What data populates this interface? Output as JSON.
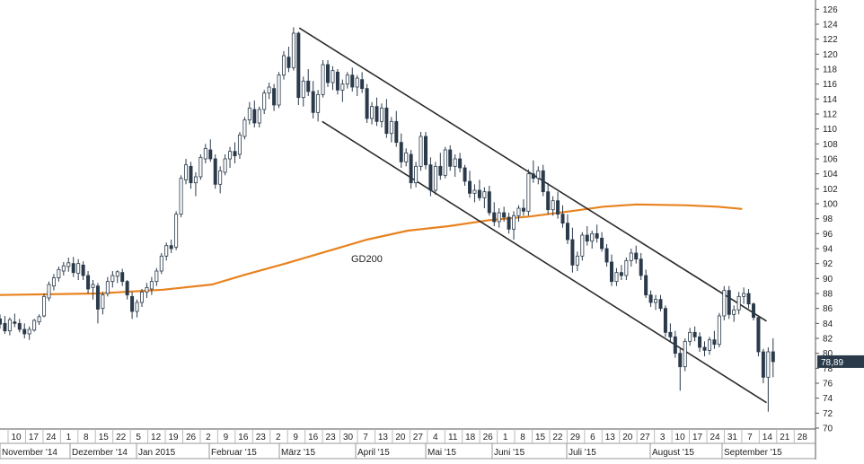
{
  "chart_data": {
    "type": "candlestick",
    "title": "",
    "ylim": [
      70,
      127
    ],
    "yticks": [
      70,
      72,
      74,
      76,
      78,
      80,
      82,
      84,
      86,
      88,
      90,
      92,
      94,
      96,
      98,
      100,
      102,
      104,
      106,
      108,
      110,
      112,
      114,
      116,
      118,
      120,
      122,
      124,
      126
    ],
    "current_price_label": "78,89",
    "current_price": 78.89,
    "grid": false,
    "x_day_ticks": [
      "10",
      "17",
      "24",
      "1",
      "8",
      "15",
      "22",
      "5",
      "12",
      "19",
      "26",
      "2",
      "9",
      "16",
      "23",
      "2",
      "9",
      "16",
      "23",
      "30",
      "7",
      "13",
      "20",
      "27",
      "4",
      "11",
      "18",
      "26",
      "1",
      "8",
      "15",
      "22",
      "29",
      "6",
      "13",
      "20",
      "27",
      "3",
      "10",
      "17",
      "24",
      "31",
      "7",
      "14",
      "21",
      "28"
    ],
    "x_month_labels": [
      "November '14",
      "Dezember '14",
      "Jan 2015",
      "Februar '15",
      "März '15",
      "April '15",
      "Mai '15",
      "Juni '15",
      "Juli '15",
      "August '15",
      "September '15"
    ],
    "annotations": [
      {
        "text": "GD200"
      }
    ],
    "series": [
      {
        "name": "GD200",
        "color": "#e8821e",
        "points": [
          [
            0,
            87.8
          ],
          [
            0.12,
            88.0
          ],
          [
            0.2,
            88.5
          ],
          [
            0.26,
            89.2
          ],
          [
            0.3,
            90.5
          ],
          [
            0.35,
            92.0
          ],
          [
            0.4,
            93.6
          ],
          [
            0.45,
            95.2
          ],
          [
            0.5,
            96.4
          ],
          [
            0.55,
            97.0
          ],
          [
            0.6,
            97.8
          ],
          [
            0.65,
            98.3
          ],
          [
            0.7,
            99.0
          ],
          [
            0.74,
            99.6
          ],
          [
            0.78,
            99.9
          ],
          [
            0.84,
            99.8
          ],
          [
            0.88,
            99.6
          ],
          [
            0.91,
            99.3
          ]
        ]
      }
    ],
    "trend_channel": {
      "upper": [
        [
          0.367,
          123.5
        ],
        [
          0.94,
          84.3
        ]
      ],
      "lower": [
        [
          0.395,
          111.0
        ],
        [
          0.94,
          73.4
        ]
      ],
      "color": "#2b2b2b"
    },
    "candles": [
      [
        0.0,
        84.6,
        85.2,
        83.3,
        83.9
      ],
      [
        0.006,
        84.0,
        85.0,
        82.6,
        83.0
      ],
      [
        0.012,
        83.0,
        84.8,
        82.4,
        84.5
      ],
      [
        0.018,
        84.2,
        85.3,
        83.5,
        84.0
      ],
      [
        0.024,
        84.0,
        84.6,
        82.8,
        83.2
      ],
      [
        0.03,
        83.2,
        84.0,
        82.0,
        82.6
      ],
      [
        0.036,
        82.6,
        83.6,
        81.8,
        83.2
      ],
      [
        0.042,
        83.1,
        84.6,
        82.9,
        84.4
      ],
      [
        0.048,
        84.2,
        85.2,
        83.8,
        84.9
      ],
      [
        0.054,
        85.0,
        88.0,
        84.8,
        87.6
      ],
      [
        0.06,
        87.4,
        89.6,
        87.0,
        89.2
      ],
      [
        0.066,
        89.0,
        90.6,
        88.4,
        90.1
      ],
      [
        0.072,
        90.1,
        91.6,
        89.6,
        91.2
      ],
      [
        0.078,
        91.0,
        92.2,
        90.4,
        91.7
      ],
      [
        0.084,
        91.6,
        92.8,
        90.9,
        92.1
      ],
      [
        0.09,
        92.0,
        92.9,
        90.2,
        90.8
      ],
      [
        0.096,
        90.7,
        92.6,
        89.8,
        92.0
      ],
      [
        0.102,
        91.8,
        92.3,
        89.8,
        90.4
      ],
      [
        0.108,
        90.4,
        91.0,
        88.0,
        88.6
      ],
      [
        0.114,
        88.8,
        89.8,
        87.2,
        89.2
      ],
      [
        0.12,
        89.0,
        89.4,
        84.0,
        85.9
      ],
      [
        0.126,
        86.0,
        88.2,
        85.2,
        87.8
      ],
      [
        0.132,
        88.0,
        90.2,
        87.6,
        89.6
      ],
      [
        0.138,
        89.6,
        91.0,
        88.8,
        90.4
      ],
      [
        0.144,
        90.3,
        91.1,
        89.4,
        90.9
      ],
      [
        0.15,
        90.8,
        91.3,
        89.0,
        89.6
      ],
      [
        0.156,
        89.6,
        89.8,
        87.2,
        87.8
      ],
      [
        0.162,
        87.6,
        88.2,
        84.6,
        85.6
      ],
      [
        0.168,
        85.6,
        87.2,
        84.8,
        86.8
      ],
      [
        0.174,
        86.8,
        88.6,
        86.2,
        88.2
      ],
      [
        0.18,
        88.2,
        89.4,
        87.4,
        88.8
      ],
      [
        0.186,
        88.6,
        90.2,
        87.8,
        89.6
      ],
      [
        0.192,
        89.6,
        91.4,
        89.0,
        91.0
      ],
      [
        0.198,
        91.0,
        93.4,
        90.6,
        93.0
      ],
      [
        0.204,
        93.0,
        94.8,
        92.4,
        94.4
      ],
      [
        0.21,
        94.4,
        95.2,
        93.4,
        94.0
      ],
      [
        0.216,
        94.2,
        99.0,
        93.8,
        98.6
      ],
      [
        0.222,
        98.6,
        103.8,
        98.2,
        103.4
      ],
      [
        0.228,
        103.2,
        106.0,
        102.6,
        105.2
      ],
      [
        0.234,
        105.0,
        105.6,
        102.0,
        102.8
      ],
      [
        0.24,
        102.8,
        104.2,
        101.0,
        103.6
      ],
      [
        0.246,
        103.6,
        106.6,
        103.2,
        106.2
      ],
      [
        0.252,
        106.0,
        108.0,
        105.4,
        107.4
      ],
      [
        0.258,
        107.2,
        108.6,
        105.6,
        106.0
      ],
      [
        0.264,
        106.0,
        106.6,
        102.0,
        102.6
      ],
      [
        0.27,
        102.6,
        105.0,
        101.4,
        104.4
      ],
      [
        0.276,
        104.2,
        106.6,
        103.8,
        106.0
      ],
      [
        0.282,
        106.0,
        107.6,
        104.8,
        107.0
      ],
      [
        0.288,
        107.0,
        108.2,
        105.4,
        106.4
      ],
      [
        0.294,
        106.6,
        109.6,
        106.0,
        109.2
      ],
      [
        0.3,
        109.0,
        111.6,
        108.6,
        111.2
      ],
      [
        0.306,
        111.2,
        113.6,
        110.6,
        112.8
      ],
      [
        0.312,
        112.6,
        113.8,
        110.2,
        110.8
      ],
      [
        0.318,
        110.8,
        113.0,
        110.2,
        112.6
      ],
      [
        0.324,
        112.6,
        115.2,
        112.0,
        114.8
      ],
      [
        0.33,
        114.8,
        116.2,
        114.0,
        115.6
      ],
      [
        0.336,
        115.4,
        116.0,
        112.4,
        113.2
      ],
      [
        0.342,
        113.2,
        117.6,
        112.8,
        117.2
      ],
      [
        0.348,
        117.2,
        120.4,
        116.6,
        119.8
      ],
      [
        0.354,
        119.6,
        121.0,
        117.6,
        118.2
      ],
      [
        0.36,
        118.2,
        123.6,
        117.8,
        122.8
      ],
      [
        0.366,
        122.8,
        123.0,
        113.2,
        114.2
      ],
      [
        0.372,
        114.2,
        117.0,
        113.0,
        116.4
      ],
      [
        0.378,
        116.4,
        118.0,
        114.4,
        115.0
      ],
      [
        0.384,
        115.0,
        116.4,
        111.4,
        112.2
      ],
      [
        0.39,
        112.2,
        115.2,
        111.0,
        114.6
      ],
      [
        0.396,
        114.6,
        119.2,
        114.2,
        118.6
      ],
      [
        0.402,
        118.6,
        119.2,
        115.6,
        116.2
      ],
      [
        0.408,
        116.2,
        118.4,
        115.2,
        117.8
      ],
      [
        0.414,
        117.6,
        118.0,
        114.6,
        115.2
      ],
      [
        0.42,
        115.2,
        116.6,
        113.6,
        116.0
      ],
      [
        0.426,
        116.0,
        117.6,
        115.4,
        117.2
      ],
      [
        0.432,
        117.2,
        118.2,
        115.0,
        115.6
      ],
      [
        0.438,
        115.6,
        117.2,
        114.4,
        116.8
      ],
      [
        0.444,
        116.6,
        117.6,
        114.8,
        115.4
      ],
      [
        0.45,
        115.4,
        116.0,
        110.8,
        111.4
      ],
      [
        0.456,
        111.4,
        113.6,
        110.6,
        113.0
      ],
      [
        0.462,
        113.0,
        114.2,
        110.4,
        111.0
      ],
      [
        0.468,
        111.0,
        113.4,
        110.2,
        112.8
      ],
      [
        0.474,
        112.8,
        114.0,
        108.8,
        109.4
      ],
      [
        0.48,
        109.4,
        111.6,
        108.2,
        111.0
      ],
      [
        0.486,
        111.0,
        112.4,
        107.6,
        108.2
      ],
      [
        0.492,
        108.2,
        109.4,
        104.8,
        105.6
      ],
      [
        0.498,
        105.6,
        107.4,
        105.0,
        106.8
      ],
      [
        0.504,
        106.6,
        107.2,
        102.0,
        102.8
      ],
      [
        0.51,
        102.8,
        105.6,
        102.2,
        105.0
      ],
      [
        0.516,
        105.0,
        109.6,
        104.4,
        109.0
      ],
      [
        0.522,
        109.0,
        109.6,
        104.6,
        105.2
      ],
      [
        0.528,
        105.2,
        106.2,
        101.0,
        101.8
      ],
      [
        0.534,
        101.8,
        105.6,
        101.2,
        105.0
      ],
      [
        0.54,
        105.0,
        106.8,
        103.2,
        103.8
      ],
      [
        0.546,
        103.8,
        107.6,
        103.4,
        107.2
      ],
      [
        0.552,
        107.2,
        107.8,
        104.4,
        105.0
      ],
      [
        0.558,
        105.0,
        106.6,
        103.6,
        106.0
      ],
      [
        0.564,
        106.0,
        106.8,
        104.2,
        104.8
      ],
      [
        0.57,
        104.8,
        105.2,
        102.4,
        103.0
      ],
      [
        0.576,
        103.0,
        104.4,
        100.8,
        101.4
      ],
      [
        0.582,
        101.4,
        102.6,
        100.2,
        101.8
      ],
      [
        0.588,
        101.8,
        103.2,
        100.4,
        100.8
      ],
      [
        0.594,
        100.8,
        102.2,
        99.4,
        101.6
      ],
      [
        0.6,
        101.6,
        102.4,
        98.4,
        98.8
      ],
      [
        0.606,
        98.8,
        100.2,
        97.0,
        97.6
      ],
      [
        0.612,
        97.6,
        99.4,
        96.8,
        98.8
      ],
      [
        0.618,
        98.8,
        99.6,
        97.6,
        98.2
      ],
      [
        0.624,
        98.2,
        98.8,
        96.0,
        96.6
      ],
      [
        0.63,
        96.6,
        99.0,
        95.2,
        98.4
      ],
      [
        0.636,
        98.4,
        99.8,
        97.6,
        99.4
      ],
      [
        0.642,
        99.4,
        100.6,
        98.4,
        99.0
      ],
      [
        0.648,
        99.0,
        104.6,
        98.4,
        104.0
      ],
      [
        0.654,
        104.0,
        105.8,
        102.8,
        103.4
      ],
      [
        0.66,
        103.4,
        105.0,
        102.6,
        104.4
      ],
      [
        0.666,
        104.4,
        105.2,
        101.0,
        101.6
      ],
      [
        0.672,
        101.6,
        102.8,
        98.6,
        99.2
      ],
      [
        0.678,
        99.2,
        101.0,
        98.4,
        100.4
      ],
      [
        0.684,
        100.4,
        101.6,
        98.0,
        98.6
      ],
      [
        0.69,
        98.6,
        99.8,
        96.8,
        97.4
      ],
      [
        0.696,
        97.4,
        98.6,
        94.6,
        95.2
      ],
      [
        0.702,
        95.2,
        96.8,
        90.8,
        91.8
      ],
      [
        0.708,
        91.8,
        93.6,
        91.0,
        93.0
      ],
      [
        0.714,
        93.0,
        96.2,
        92.4,
        95.8
      ],
      [
        0.72,
        95.8,
        97.0,
        94.4,
        95.0
      ],
      [
        0.726,
        95.0,
        96.4,
        94.0,
        96.0
      ],
      [
        0.732,
        96.0,
        97.2,
        94.8,
        95.4
      ],
      [
        0.738,
        95.4,
        96.2,
        93.6,
        94.0
      ],
      [
        0.744,
        94.0,
        94.6,
        91.6,
        92.2
      ],
      [
        0.75,
        92.2,
        93.2,
        89.0,
        89.6
      ],
      [
        0.756,
        89.6,
        91.4,
        89.0,
        90.8
      ],
      [
        0.762,
        90.8,
        91.8,
        89.8,
        90.4
      ],
      [
        0.768,
        90.4,
        92.8,
        89.8,
        92.4
      ],
      [
        0.774,
        92.4,
        94.0,
        91.6,
        93.4
      ],
      [
        0.78,
        93.4,
        94.4,
        92.0,
        92.6
      ],
      [
        0.786,
        92.6,
        93.4,
        89.8,
        90.4
      ],
      [
        0.792,
        90.4,
        91.2,
        87.4,
        87.8
      ],
      [
        0.798,
        87.8,
        88.4,
        86.2,
        86.8
      ],
      [
        0.804,
        86.8,
        87.8,
        85.8,
        87.2
      ],
      [
        0.81,
        87.2,
        87.8,
        85.6,
        86.0
      ],
      [
        0.816,
        86.0,
        86.4,
        82.2,
        82.8
      ],
      [
        0.822,
        82.8,
        84.0,
        81.6,
        82.2
      ],
      [
        0.828,
        82.2,
        83.0,
        79.4,
        80.0
      ],
      [
        0.834,
        80.0,
        80.6,
        75.0,
        78.2
      ],
      [
        0.84,
        78.2,
        82.0,
        77.6,
        81.6
      ],
      [
        0.846,
        81.6,
        83.4,
        81.0,
        82.8
      ],
      [
        0.852,
        82.8,
        83.6,
        81.6,
        82.2
      ],
      [
        0.858,
        82.2,
        82.8,
        80.2,
        80.8
      ],
      [
        0.864,
        80.8,
        81.6,
        79.6,
        80.4
      ],
      [
        0.87,
        80.4,
        82.2,
        79.8,
        81.8
      ],
      [
        0.876,
        81.8,
        83.0,
        80.6,
        81.2
      ],
      [
        0.882,
        81.2,
        85.4,
        80.8,
        85.0
      ],
      [
        0.888,
        85.0,
        89.0,
        84.4,
        88.4
      ],
      [
        0.894,
        88.4,
        89.0,
        84.6,
        85.2
      ],
      [
        0.9,
        85.2,
        86.4,
        84.2,
        85.8
      ],
      [
        0.906,
        85.8,
        88.2,
        85.2,
        87.6
      ],
      [
        0.912,
        87.6,
        88.8,
        86.6,
        88.0
      ],
      [
        0.918,
        88.0,
        88.6,
        86.0,
        86.6
      ],
      [
        0.924,
        86.6,
        86.8,
        84.4,
        84.8
      ],
      [
        0.93,
        84.8,
        84.4,
        79.6,
        80.2
      ],
      [
        0.936,
        80.2,
        80.6,
        76.0,
        76.8
      ],
      [
        0.942,
        76.8,
        80.8,
        72.2,
        80.2
      ],
      [
        0.948,
        80.2,
        82.0,
        76.8,
        78.89
      ]
    ]
  }
}
